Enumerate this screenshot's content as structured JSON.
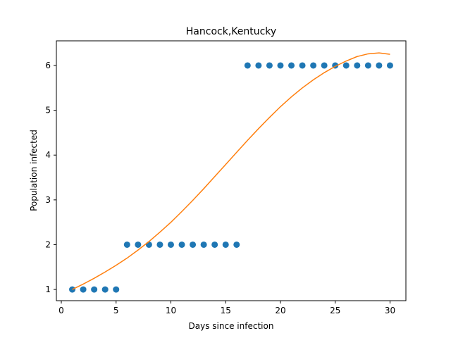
{
  "chart_data": {
    "type": "scatter",
    "title": "Hancock,Kentucky",
    "xlabel": "Days since infection",
    "ylabel": "Population infected",
    "xlim": [
      -0.45,
      31.45
    ],
    "ylim": [
      0.75,
      6.55
    ],
    "xticks": [
      0,
      5,
      10,
      15,
      20,
      25,
      30
    ],
    "yticks": [
      1,
      2,
      3,
      4,
      5,
      6
    ],
    "grid": false,
    "legend": "none",
    "series": [
      {
        "kind": "scatter",
        "color": "#1f77b4",
        "x": [
          1,
          2,
          3,
          4,
          5,
          6,
          7,
          8,
          9,
          10,
          11,
          12,
          13,
          14,
          15,
          16,
          17,
          18,
          19,
          20,
          21,
          22,
          23,
          24,
          25,
          26,
          27,
          28,
          29,
          30
        ],
        "y": [
          1,
          1,
          1,
          1,
          1,
          2,
          2,
          2,
          2,
          2,
          2,
          2,
          2,
          2,
          2,
          2,
          6,
          6,
          6,
          6,
          6,
          6,
          6,
          6,
          6,
          6,
          6,
          6,
          6,
          6
        ]
      },
      {
        "kind": "line",
        "color": "#ff7f0e",
        "x": [
          1,
          2,
          3,
          4,
          5,
          6,
          7,
          8,
          9,
          10,
          11,
          12,
          13,
          14,
          15,
          16,
          17,
          18,
          19,
          20,
          21,
          22,
          23,
          24,
          25,
          26,
          27,
          28,
          29,
          30
        ],
        "y": [
          1.0,
          1.12,
          1.25,
          1.39,
          1.54,
          1.7,
          1.88,
          2.07,
          2.28,
          2.5,
          2.74,
          2.99,
          3.25,
          3.52,
          3.79,
          4.06,
          4.33,
          4.59,
          4.84,
          5.08,
          5.3,
          5.5,
          5.68,
          5.84,
          5.98,
          6.1,
          6.2,
          6.26,
          6.28,
          6.25
        ]
      }
    ]
  }
}
